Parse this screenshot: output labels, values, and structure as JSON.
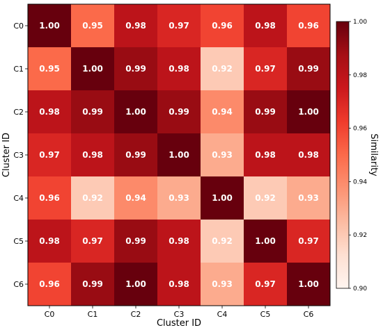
{
  "chart_data": {
    "type": "heatmap",
    "title": "",
    "xlabel": "Cluster ID",
    "ylabel": "Cluster ID",
    "x_categories": [
      "C0",
      "C1",
      "C2",
      "C3",
      "C4",
      "C5",
      "C6"
    ],
    "y_categories": [
      "C0",
      "C1",
      "C2",
      "C3",
      "C4",
      "C5",
      "C6"
    ],
    "values": [
      [
        1.0,
        0.95,
        0.98,
        0.97,
        0.96,
        0.98,
        0.96
      ],
      [
        0.95,
        1.0,
        0.99,
        0.98,
        0.92,
        0.97,
        0.99
      ],
      [
        0.98,
        0.99,
        1.0,
        0.99,
        0.94,
        0.99,
        1.0
      ],
      [
        0.97,
        0.98,
        0.99,
        1.0,
        0.93,
        0.98,
        0.98
      ],
      [
        0.96,
        0.92,
        0.94,
        0.93,
        1.0,
        0.92,
        0.93
      ],
      [
        0.98,
        0.97,
        0.99,
        0.98,
        0.92,
        1.0,
        0.97
      ],
      [
        0.96,
        0.99,
        1.0,
        0.98,
        0.93,
        0.97,
        1.0
      ]
    ],
    "value_labels": [
      [
        "1.00",
        "0.95",
        "0.98",
        "0.97",
        "0.96",
        "0.98",
        "0.96"
      ],
      [
        "0.95",
        "1.00",
        "0.99",
        "0.98",
        "0.92",
        "0.97",
        "0.99"
      ],
      [
        "0.98",
        "0.99",
        "1.00",
        "0.99",
        "0.94",
        "0.99",
        "1.00"
      ],
      [
        "0.97",
        "0.98",
        "0.99",
        "1.00",
        "0.93",
        "0.98",
        "0.98"
      ],
      [
        "0.96",
        "0.92",
        "0.94",
        "0.93",
        "1.00",
        "0.92",
        "0.93"
      ],
      [
        "0.98",
        "0.97",
        "0.99",
        "0.98",
        "0.92",
        "1.00",
        "0.97"
      ],
      [
        "0.96",
        "0.99",
        "1.00",
        "0.98",
        "0.93",
        "0.97",
        "1.00"
      ]
    ],
    "colorbar": {
      "label": "Similarity",
      "range": [
        0.9,
        1.0
      ],
      "ticks": [
        0.9,
        0.92,
        0.94,
        0.96,
        0.98,
        1.0
      ],
      "tick_labels": [
        "0.90",
        "0.92",
        "0.94",
        "0.96",
        "0.98",
        "1.00"
      ],
      "colormap": "Reds",
      "color_low": "#fff5f0",
      "color_high": "#67000d"
    },
    "grid": false,
    "legend": "colorbar-right"
  }
}
